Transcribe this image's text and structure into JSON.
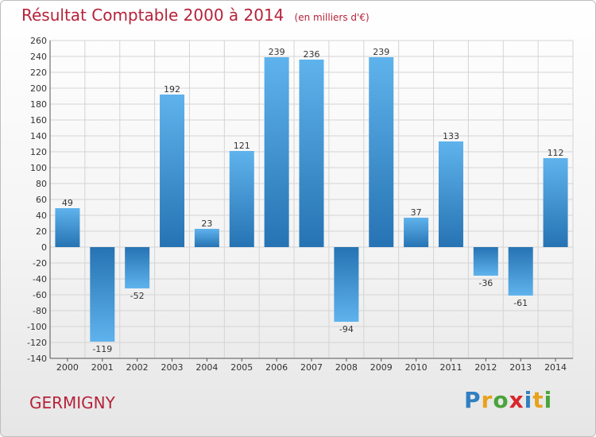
{
  "title": "Résultat Comptable 2000 à 2014",
  "subtitle": "(en milliers d'€)",
  "commune": "GERMIGNY",
  "logo": {
    "letters": [
      "P",
      "r",
      "o",
      "x",
      "i",
      "t",
      "i"
    ],
    "colors": [
      "#2f7fc1",
      "#e8a21b",
      "#4aa33c",
      "#d9262b",
      "#2f7fc1",
      "#e8a21b",
      "#4aa33c"
    ]
  },
  "colors": {
    "bar_light": "#5fb3ec",
    "bar_dark": "#2673b3",
    "title": "#b5233a"
  },
  "chart_data": {
    "type": "bar",
    "categories": [
      "2000",
      "2001",
      "2002",
      "2003",
      "2004",
      "2005",
      "2006",
      "2007",
      "2008",
      "2009",
      "2010",
      "2011",
      "2012",
      "2013",
      "2014"
    ],
    "values": [
      49,
      -119,
      -52,
      192,
      23,
      121,
      239,
      236,
      -94,
      239,
      37,
      133,
      -36,
      -61,
      112
    ],
    "ylim": [
      -140,
      260
    ],
    "yticks": [
      -140,
      -120,
      -100,
      -80,
      -60,
      -40,
      -20,
      0,
      20,
      40,
      60,
      80,
      100,
      120,
      140,
      160,
      180,
      200,
      220,
      240,
      260
    ],
    "grid": true,
    "title": "Résultat Comptable 2000 à 2014",
    "xlabel": "",
    "ylabel": ""
  }
}
